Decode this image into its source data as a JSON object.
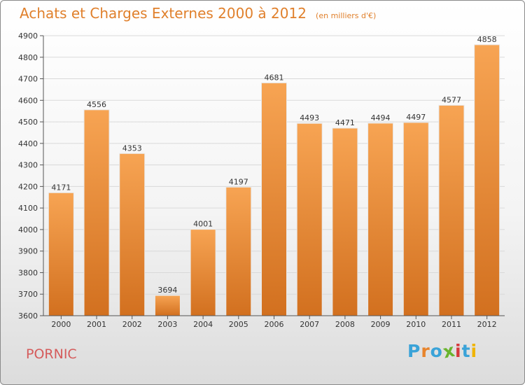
{
  "header": {
    "title": "Achats et Charges Externes 2000 à 2012",
    "unit": "(en milliers d'€)"
  },
  "footer": {
    "commune": "PORNIC",
    "brand": "Proxiti",
    "brand_colors": [
      "#3aa3d8",
      "#e8842c",
      "#3aa3d8",
      "#6ab42d",
      "#d6393c",
      "#3aa3d8",
      "#f0b400"
    ]
  },
  "colors": {
    "bar_top": "#f7a453",
    "bar_bottom": "#d2701f",
    "title": "#e0802c",
    "commune": "#d55b5b",
    "grid": "#d9d9d9"
  },
  "chart_data": {
    "type": "bar",
    "title": "Achats et Charges Externes 2000 à 2012",
    "subtitle": "(en milliers d'€)",
    "xlabel": "",
    "ylabel": "",
    "categories": [
      "2000",
      "2001",
      "2002",
      "2003",
      "2004",
      "2005",
      "2006",
      "2007",
      "2008",
      "2009",
      "2010",
      "2011",
      "2012"
    ],
    "values": [
      4171,
      4556,
      4353,
      3694,
      4001,
      4197,
      4681,
      4493,
      4471,
      4494,
      4497,
      4577,
      4858
    ],
    "ylim": [
      3600,
      4900
    ],
    "yticks": [
      3600,
      3700,
      3800,
      3900,
      4000,
      4100,
      4200,
      4300,
      4400,
      4500,
      4600,
      4700,
      4800,
      4900
    ],
    "grid": true,
    "data_labels": true
  }
}
